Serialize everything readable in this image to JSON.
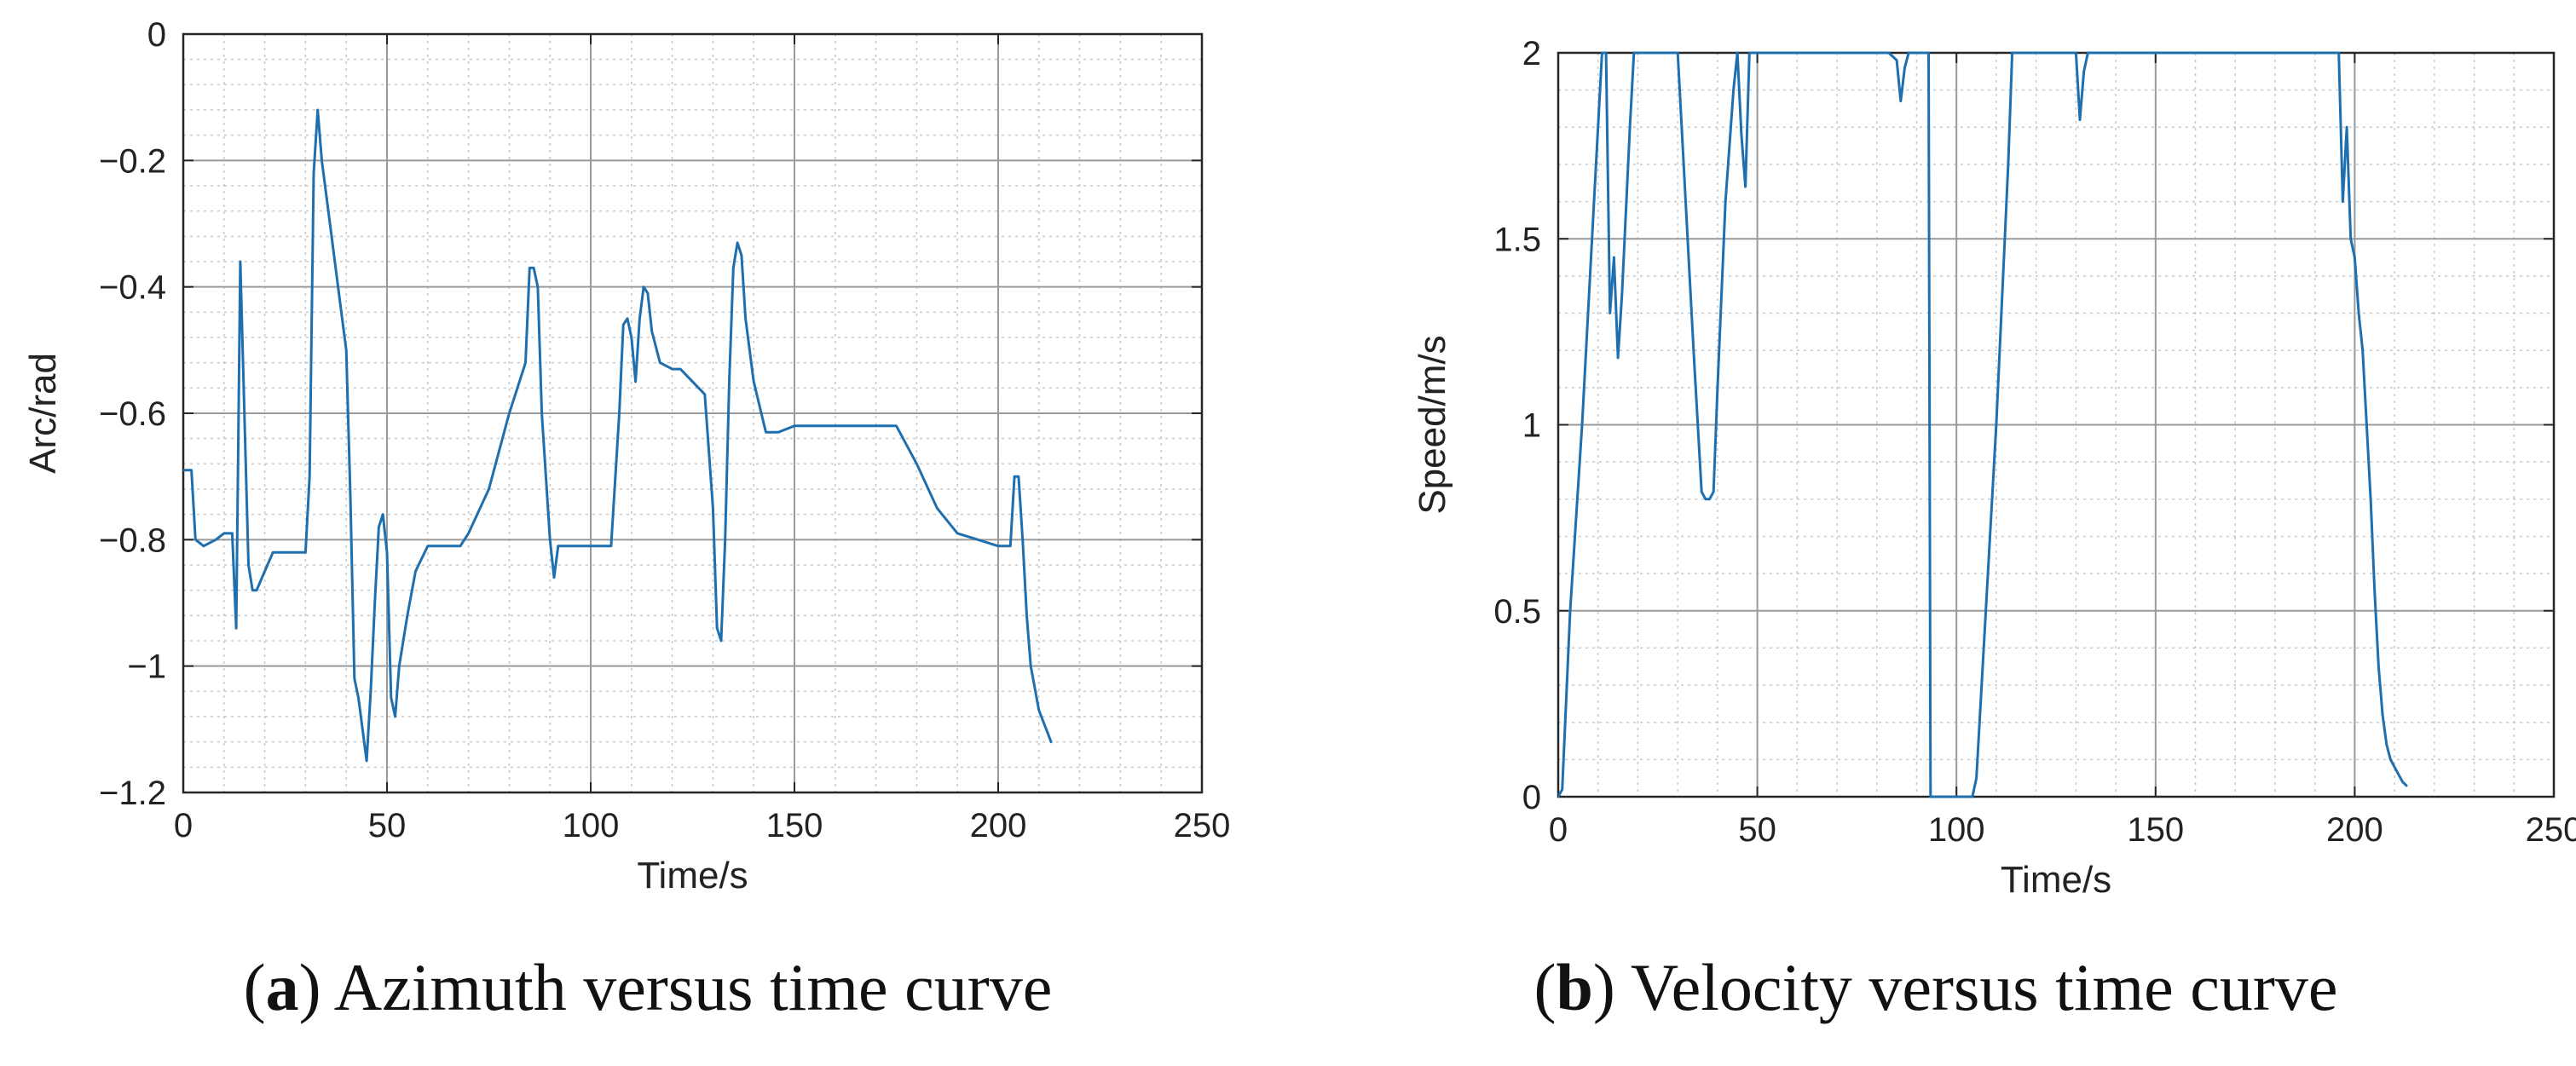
{
  "chart_data": [
    {
      "type": "line",
      "title": "Azimuth versus time curve",
      "panel_letter": "a",
      "caption_suffix": "Azimuth versus time curve",
      "xlabel": "Time/s",
      "ylabel": "Arc/rad",
      "xlim": [
        0,
        250
      ],
      "ylim": [
        -1.2,
        0
      ],
      "xticks": [
        0,
        50,
        100,
        150,
        200,
        250
      ],
      "xtick_labels": [
        "0",
        "50",
        "100",
        "150",
        "200",
        "250"
      ],
      "yticks": [
        0,
        -0.2,
        -0.4,
        -0.6,
        -0.8,
        -1,
        -1.2
      ],
      "ytick_labels": [
        "0",
        "−0.2",
        "−0.4",
        "−0.6",
        "−0.8",
        "−1",
        "−1.2"
      ],
      "grid": true,
      "minor_grid": true,
      "line_color": "#1f6fae",
      "series": [
        {
          "name": "Azimuth",
          "x": [
            0,
            2,
            3,
            5,
            8,
            10,
            12,
            13,
            14,
            15,
            16,
            17,
            18,
            20,
            22,
            25,
            30,
            31,
            32,
            33,
            34,
            36,
            38,
            40,
            41,
            42,
            43,
            44,
            45,
            46,
            47,
            48,
            49,
            50,
            51,
            52,
            53,
            55,
            57,
            60,
            65,
            68,
            70,
            75,
            80,
            82,
            84,
            85,
            86,
            87,
            88,
            90,
            91,
            92,
            93,
            95,
            100,
            105,
            107,
            108,
            109,
            110,
            111,
            112,
            113,
            114,
            115,
            117,
            120,
            122,
            125,
            128,
            130,
            131,
            132,
            133,
            134,
            135,
            136,
            137,
            138,
            140,
            143,
            146,
            150,
            155,
            160,
            170,
            175,
            180,
            185,
            190,
            195,
            200,
            201,
            203,
            204,
            205,
            206,
            207,
            208,
            210,
            213
          ],
          "y": [
            -0.69,
            -0.69,
            -0.8,
            -0.81,
            -0.8,
            -0.79,
            -0.79,
            -0.94,
            -0.36,
            -0.6,
            -0.84,
            -0.88,
            -0.88,
            -0.85,
            -0.82,
            -0.82,
            -0.82,
            -0.7,
            -0.22,
            -0.12,
            -0.2,
            -0.3,
            -0.4,
            -0.5,
            -0.73,
            -1.02,
            -1.05,
            -1.1,
            -1.15,
            -1.04,
            -0.9,
            -0.78,
            -0.76,
            -0.82,
            -1.05,
            -1.08,
            -1.0,
            -0.92,
            -0.85,
            -0.81,
            -0.81,
            -0.81,
            -0.79,
            -0.72,
            -0.6,
            -0.56,
            -0.52,
            -0.37,
            -0.37,
            -0.4,
            -0.6,
            -0.8,
            -0.86,
            -0.81,
            -0.81,
            -0.81,
            -0.81,
            -0.81,
            -0.6,
            -0.46,
            -0.45,
            -0.48,
            -0.55,
            -0.45,
            -0.4,
            -0.41,
            -0.47,
            -0.52,
            -0.53,
            -0.53,
            -0.55,
            -0.57,
            -0.75,
            -0.94,
            -0.96,
            -0.8,
            -0.55,
            -0.37,
            -0.33,
            -0.35,
            -0.45,
            -0.55,
            -0.63,
            -0.63,
            -0.62,
            -0.62,
            -0.62,
            -0.62,
            -0.62,
            -0.68,
            -0.75,
            -0.79,
            -0.8,
            -0.81,
            -0.81,
            -0.81,
            -0.7,
            -0.7,
            -0.8,
            -0.92,
            -1.0,
            -1.07,
            -1.12
          ]
        }
      ]
    },
    {
      "type": "line",
      "title": "Velocity versus time curve",
      "panel_letter": "b",
      "caption_suffix": "Velocity versus time curve",
      "xlabel": "Time/s",
      "ylabel": "Speed/m/s",
      "xlim": [
        0,
        250
      ],
      "ylim": [
        0,
        2
      ],
      "xticks": [
        0,
        50,
        100,
        150,
        200,
        250
      ],
      "xtick_labels": [
        "0",
        "50",
        "100",
        "150",
        "200",
        "250"
      ],
      "yticks": [
        0,
        0.5,
        1,
        1.5,
        2
      ],
      "ytick_labels": [
        "0",
        "0.5",
        "1",
        "1.5",
        "2"
      ],
      "grid": true,
      "minor_grid": true,
      "line_color": "#1f6fae",
      "series": [
        {
          "name": "Speed",
          "x": [
            0,
            1,
            3,
            6,
            9,
            11,
            12,
            13,
            14,
            15,
            16,
            18,
            19,
            22,
            30,
            32,
            34,
            36,
            37,
            38,
            39,
            40,
            42,
            44,
            45,
            46,
            47,
            48,
            49,
            50,
            55,
            60,
            70,
            80,
            83,
            85,
            86,
            87,
            88,
            92,
            93,
            93.5,
            94,
            100,
            104,
            105,
            110,
            113,
            114,
            115,
            120,
            130,
            131,
            132,
            133,
            140,
            150,
            160,
            170,
            180,
            190,
            196,
            197,
            198,
            199,
            200,
            201,
            202,
            203,
            204,
            205,
            206,
            207,
            208,
            209,
            210,
            211,
            212,
            213
          ],
          "y": [
            0,
            0.02,
            0.5,
            1.0,
            1.6,
            2.0,
            2.0,
            1.3,
            1.45,
            1.18,
            1.35,
            1.8,
            2.0,
            2.0,
            2.0,
            1.6,
            1.2,
            0.82,
            0.8,
            0.8,
            0.82,
            1.1,
            1.6,
            1.9,
            2.0,
            1.78,
            1.64,
            2.0,
            2.0,
            2.0,
            2.0,
            2.0,
            2.0,
            2.0,
            2.0,
            1.98,
            1.87,
            1.96,
            2.0,
            2.0,
            2.0,
            0,
            0,
            0,
            0,
            0.05,
            1.0,
            1.7,
            2.0,
            2.0,
            2.0,
            2.0,
            1.82,
            1.95,
            2.0,
            2.0,
            2.0,
            2.0,
            2.0,
            2.0,
            2.0,
            2.0,
            1.6,
            1.8,
            1.5,
            1.45,
            1.3,
            1.2,
            1.0,
            0.8,
            0.55,
            0.35,
            0.22,
            0.14,
            0.1,
            0.08,
            0.06,
            0.04,
            0.03
          ]
        }
      ]
    }
  ]
}
